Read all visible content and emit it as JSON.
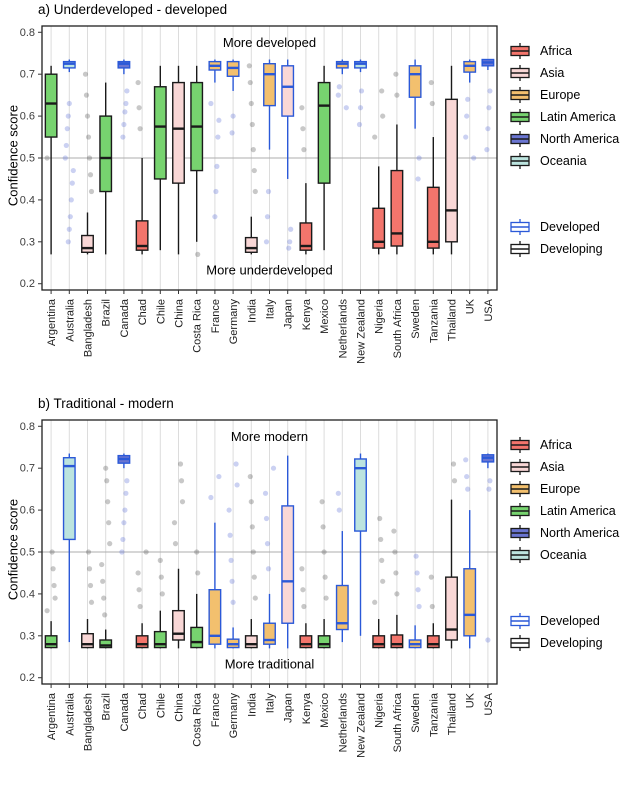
{
  "figure": {
    "ylabel": "Confidence score"
  },
  "legend": {
    "continents": [
      {
        "label": "Africa",
        "color": "#F3756C"
      },
      {
        "label": "Asia",
        "color": "#F9D7D6"
      },
      {
        "label": "Europe",
        "color": "#F3C06E"
      },
      {
        "label": "Latin America",
        "color": "#77D36F"
      },
      {
        "label": "North America",
        "color": "#6A75D1"
      },
      {
        "label": "Oceania",
        "color": "#BCE4DF"
      }
    ],
    "status": [
      {
        "label": "Developed",
        "color": "#2B59D8"
      },
      {
        "label": "Developing",
        "color": "#1A1A1A"
      }
    ]
  },
  "style": {
    "gridline": "#DCDCDC",
    "reference_line": "#ADADAD",
    "panel_border": "#1F1F1F",
    "tick_text": "#3D3D3D",
    "outlier_gray": "#555555",
    "outlier_blue": "#5C6FD8"
  },
  "chart_data": [
    {
      "type": "boxplot",
      "title": "a) Underdeveloped - developed",
      "ylabel": "Confidence score",
      "ylim": [
        0.2,
        0.8
      ],
      "yticks": [
        0.2,
        0.3,
        0.4,
        0.5,
        0.6,
        0.7,
        0.8
      ],
      "reference_line": 0.5,
      "annotation_top": "More developed",
      "annotation_bottom": "More underdeveloped",
      "boxes": [
        {
          "country": "Argentina",
          "continent": "Latin America",
          "status": "Developing",
          "whislo": 0.27,
          "q1": 0.55,
          "med": 0.63,
          "q3": 0.7,
          "whishi": 0.72,
          "outliers": [
            0.5
          ]
        },
        {
          "country": "Australia",
          "continent": "Oceania",
          "status": "Developed",
          "whislo": 0.705,
          "q1": 0.715,
          "med": 0.725,
          "q3": 0.73,
          "whishi": 0.735,
          "outliers": [
            0.63,
            0.6,
            0.57,
            0.53,
            0.5,
            0.47,
            0.44,
            0.4,
            0.36,
            0.33,
            0.3
          ]
        },
        {
          "country": "Bangladesh",
          "continent": "Asia",
          "status": "Developing",
          "whislo": 0.27,
          "q1": 0.275,
          "med": 0.285,
          "q3": 0.315,
          "whishi": 0.37,
          "outliers": [
            0.42,
            0.46,
            0.5,
            0.55,
            0.6,
            0.65,
            0.7
          ]
        },
        {
          "country": "Brazil",
          "continent": "Latin America",
          "status": "Developing",
          "whislo": 0.27,
          "q1": 0.42,
          "med": 0.5,
          "q3": 0.6,
          "whishi": 0.68,
          "outliers": []
        },
        {
          "country": "Canada",
          "continent": "North America",
          "status": "Developed",
          "whislo": 0.7,
          "q1": 0.715,
          "med": 0.725,
          "q3": 0.73,
          "whishi": 0.735,
          "outliers": [
            0.66,
            0.63,
            0.61,
            0.58,
            0.55
          ]
        },
        {
          "country": "Chad",
          "continent": "Africa",
          "status": "Developing",
          "whislo": 0.27,
          "q1": 0.28,
          "med": 0.29,
          "q3": 0.35,
          "whishi": 0.5,
          "outliers": [
            0.57,
            0.62,
            0.68
          ]
        },
        {
          "country": "Chile",
          "continent": "Latin America",
          "status": "Developing",
          "whislo": 0.28,
          "q1": 0.45,
          "med": 0.575,
          "q3": 0.67,
          "whishi": 0.72,
          "outliers": []
        },
        {
          "country": "China",
          "continent": "Asia",
          "status": "Developing",
          "whislo": 0.27,
          "q1": 0.44,
          "med": 0.57,
          "q3": 0.68,
          "whishi": 0.72,
          "outliers": []
        },
        {
          "country": "Costa Rica",
          "continent": "Latin America",
          "status": "Developing",
          "whislo": 0.3,
          "q1": 0.47,
          "med": 0.575,
          "q3": 0.68,
          "whishi": 0.72,
          "outliers": [
            0.27
          ]
        },
        {
          "country": "France",
          "continent": "Europe",
          "status": "Developed",
          "whislo": 0.68,
          "q1": 0.71,
          "med": 0.72,
          "q3": 0.73,
          "whishi": 0.735,
          "outliers": [
            0.63,
            0.59,
            0.55,
            0.48,
            0.42,
            0.36
          ]
        },
        {
          "country": "Germany",
          "continent": "Europe",
          "status": "Developed",
          "whislo": 0.66,
          "q1": 0.695,
          "med": 0.715,
          "q3": 0.73,
          "whishi": 0.735,
          "outliers": [
            0.6,
            0.56
          ]
        },
        {
          "country": "India",
          "continent": "Asia",
          "status": "Developing",
          "whislo": 0.27,
          "q1": 0.275,
          "med": 0.285,
          "q3": 0.31,
          "whishi": 0.36,
          "outliers": [
            0.42,
            0.47,
            0.52,
            0.58,
            0.63,
            0.68,
            0.72
          ]
        },
        {
          "country": "Italy",
          "continent": "Europe",
          "status": "Developed",
          "whislo": 0.52,
          "q1": 0.625,
          "med": 0.7,
          "q3": 0.725,
          "whishi": 0.735,
          "outliers": [
            0.42,
            0.36,
            0.3
          ]
        },
        {
          "country": "Japan",
          "continent": "Asia",
          "status": "Developed",
          "whislo": 0.45,
          "q1": 0.6,
          "med": 0.67,
          "q3": 0.72,
          "whishi": 0.735,
          "outliers": [
            0.33,
            0.3,
            0.285
          ]
        },
        {
          "country": "Kenya",
          "continent": "Africa",
          "status": "Developing",
          "whislo": 0.27,
          "q1": 0.28,
          "med": 0.29,
          "q3": 0.345,
          "whishi": 0.44,
          "outliers": [
            0.52,
            0.57,
            0.62
          ]
        },
        {
          "country": "Mexico",
          "continent": "Latin America",
          "status": "Developing",
          "whislo": 0.28,
          "q1": 0.44,
          "med": 0.625,
          "q3": 0.68,
          "whishi": 0.72,
          "outliers": []
        },
        {
          "country": "Netherlands",
          "continent": "Europe",
          "status": "Developed",
          "whislo": 0.7,
          "q1": 0.715,
          "med": 0.725,
          "q3": 0.73,
          "whishi": 0.735,
          "outliers": [
            0.67,
            0.65,
            0.62
          ]
        },
        {
          "country": "New Zealand",
          "continent": "Oceania",
          "status": "Developed",
          "whislo": 0.705,
          "q1": 0.715,
          "med": 0.725,
          "q3": 0.73,
          "whishi": 0.735,
          "outliers": [
            0.66,
            0.62,
            0.58
          ]
        },
        {
          "country": "Nigeria",
          "continent": "Africa",
          "status": "Developing",
          "whislo": 0.27,
          "q1": 0.285,
          "med": 0.3,
          "q3": 0.38,
          "whishi": 0.48,
          "outliers": [
            0.55,
            0.6,
            0.66
          ]
        },
        {
          "country": "South Africa",
          "continent": "Africa",
          "status": "Developing",
          "whislo": 0.27,
          "q1": 0.29,
          "med": 0.32,
          "q3": 0.47,
          "whishi": 0.58,
          "outliers": [
            0.65,
            0.7
          ]
        },
        {
          "country": "Sweden",
          "continent": "Europe",
          "status": "Developed",
          "whislo": 0.57,
          "q1": 0.645,
          "med": 0.7,
          "q3": 0.72,
          "whishi": 0.735,
          "outliers": [
            0.5,
            0.45
          ]
        },
        {
          "country": "Tanzania",
          "continent": "Africa",
          "status": "Developing",
          "whislo": 0.27,
          "q1": 0.285,
          "med": 0.3,
          "q3": 0.43,
          "whishi": 0.55,
          "outliers": [
            0.63,
            0.68
          ]
        },
        {
          "country": "Thailand",
          "continent": "Asia",
          "status": "Developing",
          "whislo": 0.27,
          "q1": 0.3,
          "med": 0.375,
          "q3": 0.64,
          "whishi": 0.72,
          "outliers": []
        },
        {
          "country": "UK",
          "continent": "Europe",
          "status": "Developed",
          "whislo": 0.68,
          "q1": 0.705,
          "med": 0.72,
          "q3": 0.73,
          "whishi": 0.735,
          "outliers": [
            0.64,
            0.6,
            0.55,
            0.5
          ]
        },
        {
          "country": "USA",
          "continent": "North America",
          "status": "Developed",
          "whislo": 0.71,
          "q1": 0.72,
          "med": 0.728,
          "q3": 0.735,
          "whishi": 0.735,
          "outliers": [
            0.66,
            0.62,
            0.57,
            0.52
          ]
        }
      ]
    },
    {
      "type": "boxplot",
      "title": "b) Traditional - modern",
      "ylabel": "Confidence score",
      "ylim": [
        0.2,
        0.8
      ],
      "yticks": [
        0.2,
        0.3,
        0.4,
        0.5,
        0.6,
        0.7,
        0.8
      ],
      "reference_line": 0.5,
      "annotation_top": "More modern",
      "annotation_bottom": "More traditional",
      "boxes": [
        {
          "country": "Argentina",
          "continent": "Latin America",
          "status": "Developing",
          "whislo": 0.27,
          "q1": 0.272,
          "med": 0.28,
          "q3": 0.3,
          "whishi": 0.335,
          "outliers": [
            0.36,
            0.39,
            0.42,
            0.46,
            0.5
          ]
        },
        {
          "country": "Australia",
          "continent": "Oceania",
          "status": "Developed",
          "whislo": 0.285,
          "q1": 0.53,
          "med": 0.705,
          "q3": 0.725,
          "whishi": 0.735,
          "outliers": []
        },
        {
          "country": "Bangladesh",
          "continent": "Asia",
          "status": "Developing",
          "whislo": 0.27,
          "q1": 0.272,
          "med": 0.28,
          "q3": 0.305,
          "whishi": 0.34,
          "outliers": [
            0.38,
            0.42,
            0.46,
            0.5
          ]
        },
        {
          "country": "Brazil",
          "continent": "Latin America",
          "status": "Developing",
          "whislo": 0.27,
          "q1": 0.272,
          "med": 0.277,
          "q3": 0.29,
          "whishi": 0.315,
          "outliers": [
            0.35,
            0.39,
            0.43,
            0.47,
            0.52,
            0.57,
            0.62,
            0.67,
            0.7
          ]
        },
        {
          "country": "Canada",
          "continent": "North America",
          "status": "Developed",
          "whislo": 0.7,
          "q1": 0.712,
          "med": 0.722,
          "q3": 0.73,
          "whishi": 0.735,
          "outliers": [
            0.67,
            0.64,
            0.6,
            0.57,
            0.53,
            0.5
          ]
        },
        {
          "country": "Chad",
          "continent": "Africa",
          "status": "Developing",
          "whislo": 0.27,
          "q1": 0.272,
          "med": 0.28,
          "q3": 0.3,
          "whishi": 0.33,
          "outliers": [
            0.37,
            0.41,
            0.45,
            0.5
          ]
        },
        {
          "country": "Chile",
          "continent": "Latin America",
          "status": "Developing",
          "whislo": 0.27,
          "q1": 0.272,
          "med": 0.28,
          "q3": 0.31,
          "whishi": 0.36,
          "outliers": [
            0.4,
            0.44,
            0.48
          ]
        },
        {
          "country": "China",
          "continent": "Asia",
          "status": "Developing",
          "whislo": 0.27,
          "q1": 0.29,
          "med": 0.305,
          "q3": 0.36,
          "whishi": 0.46,
          "outliers": [
            0.52,
            0.57,
            0.62,
            0.67,
            0.71
          ]
        },
        {
          "country": "Costa Rica",
          "continent": "Latin America",
          "status": "Developing",
          "whislo": 0.27,
          "q1": 0.272,
          "med": 0.285,
          "q3": 0.32,
          "whishi": 0.4,
          "outliers": [
            0.45,
            0.5
          ]
        },
        {
          "country": "France",
          "continent": "Europe",
          "status": "Developed",
          "whislo": 0.27,
          "q1": 0.28,
          "med": 0.3,
          "q3": 0.41,
          "whishi": 0.57,
          "outliers": [
            0.63,
            0.68
          ]
        },
        {
          "country": "Germany",
          "continent": "Europe",
          "status": "Developed",
          "whislo": 0.27,
          "q1": 0.272,
          "med": 0.28,
          "q3": 0.292,
          "whishi": 0.32,
          "outliers": [
            0.38,
            0.43,
            0.48,
            0.54,
            0.6,
            0.66,
            0.71
          ]
        },
        {
          "country": "India",
          "continent": "Asia",
          "status": "Developing",
          "whislo": 0.27,
          "q1": 0.272,
          "med": 0.28,
          "q3": 0.3,
          "whishi": 0.34,
          "outliers": [
            0.39,
            0.44,
            0.5,
            0.56,
            0.62,
            0.68
          ]
        },
        {
          "country": "Italy",
          "continent": "Europe",
          "status": "Developed",
          "whislo": 0.27,
          "q1": 0.28,
          "med": 0.29,
          "q3": 0.33,
          "whishi": 0.4,
          "outliers": [
            0.46,
            0.52,
            0.58,
            0.64,
            0.7
          ]
        },
        {
          "country": "Japan",
          "continent": "Asia",
          "status": "Developed",
          "whislo": 0.27,
          "q1": 0.33,
          "med": 0.43,
          "q3": 0.61,
          "whishi": 0.73,
          "outliers": []
        },
        {
          "country": "Kenya",
          "continent": "Africa",
          "status": "Developing",
          "whislo": 0.27,
          "q1": 0.272,
          "med": 0.28,
          "q3": 0.3,
          "whishi": 0.33,
          "outliers": [
            0.37,
            0.41,
            0.46
          ]
        },
        {
          "country": "Mexico",
          "continent": "Latin America",
          "status": "Developing",
          "whislo": 0.27,
          "q1": 0.272,
          "med": 0.28,
          "q3": 0.3,
          "whishi": 0.34,
          "outliers": [
            0.39,
            0.44,
            0.5,
            0.56,
            0.62
          ]
        },
        {
          "country": "Netherlands",
          "continent": "Europe",
          "status": "Developed",
          "whislo": 0.285,
          "q1": 0.315,
          "med": 0.33,
          "q3": 0.42,
          "whishi": 0.55,
          "outliers": [
            0.6,
            0.64
          ]
        },
        {
          "country": "New Zealand",
          "continent": "Oceania",
          "status": "Developed",
          "whislo": 0.3,
          "q1": 0.55,
          "med": 0.7,
          "q3": 0.722,
          "whishi": 0.735,
          "outliers": []
        },
        {
          "country": "Nigeria",
          "continent": "Africa",
          "status": "Developing",
          "whislo": 0.27,
          "q1": 0.272,
          "med": 0.28,
          "q3": 0.3,
          "whishi": 0.34,
          "outliers": [
            0.38,
            0.43,
            0.48,
            0.53,
            0.58
          ]
        },
        {
          "country": "South Africa",
          "continent": "Africa",
          "status": "Developing",
          "whislo": 0.27,
          "q1": 0.272,
          "med": 0.28,
          "q3": 0.302,
          "whishi": 0.35,
          "outliers": [
            0.4,
            0.45,
            0.5,
            0.55
          ]
        },
        {
          "country": "Sweden",
          "continent": "Europe",
          "status": "Developed",
          "whislo": 0.27,
          "q1": 0.272,
          "med": 0.28,
          "q3": 0.29,
          "whishi": 0.325,
          "outliers": [
            0.37,
            0.41,
            0.45,
            0.49
          ]
        },
        {
          "country": "Tanzania",
          "continent": "Africa",
          "status": "Developing",
          "whislo": 0.27,
          "q1": 0.272,
          "med": 0.28,
          "q3": 0.3,
          "whishi": 0.33,
          "outliers": [
            0.37,
            0.44
          ]
        },
        {
          "country": "Thailand",
          "continent": "Asia",
          "status": "Developing",
          "whislo": 0.27,
          "q1": 0.29,
          "med": 0.315,
          "q3": 0.44,
          "whishi": 0.625,
          "outliers": [
            0.67,
            0.71
          ]
        },
        {
          "country": "UK",
          "continent": "Europe",
          "status": "Developed",
          "whislo": 0.27,
          "q1": 0.3,
          "med": 0.35,
          "q3": 0.46,
          "whishi": 0.6,
          "outliers": [
            0.65,
            0.68,
            0.72
          ]
        },
        {
          "country": "USA",
          "continent": "North America",
          "status": "Developed",
          "whislo": 0.7,
          "q1": 0.715,
          "med": 0.725,
          "q3": 0.732,
          "whishi": 0.735,
          "outliers": [
            0.67,
            0.65,
            0.29
          ]
        }
      ]
    }
  ]
}
